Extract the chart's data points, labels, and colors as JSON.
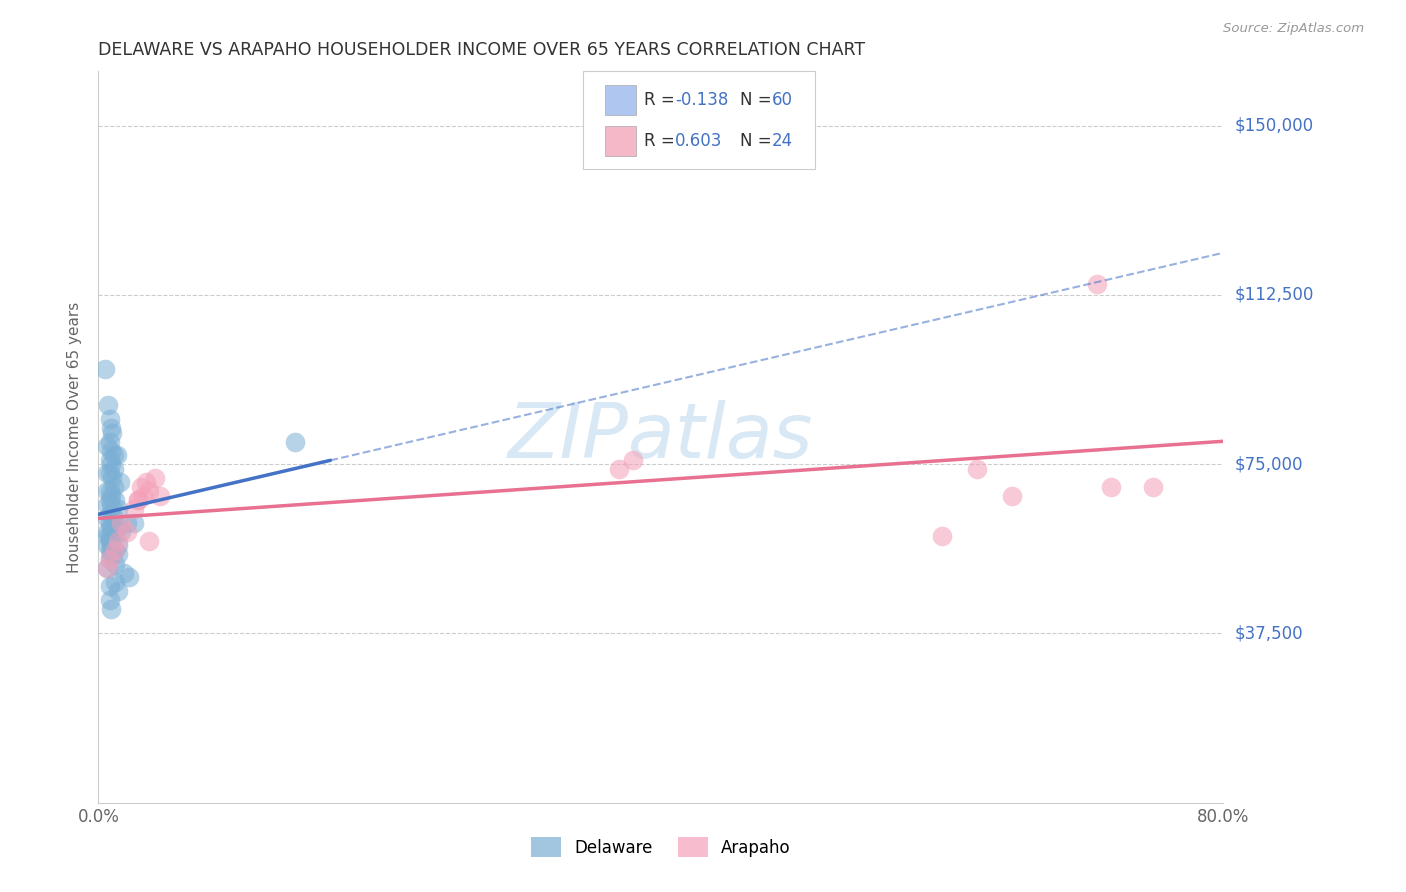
{
  "title": "DELAWARE VS ARAPAHO HOUSEHOLDER INCOME OVER 65 YEARS CORRELATION CHART",
  "source": "Source: ZipAtlas.com",
  "ylabel": "Householder Income Over 65 years",
  "ytick_values": [
    37500,
    75000,
    112500,
    150000
  ],
  "ytick_labels": [
    "$37,500",
    "$75,000",
    "$112,500",
    "$150,000"
  ],
  "xlim": [
    0.0,
    0.8
  ],
  "ylim": [
    0,
    162000
  ],
  "watermark": "ZIPatlas",
  "delaware_color": "#7bafd4",
  "arapaho_color": "#f4a0b8",
  "delaware_line_color": "#4472c4",
  "arapaho_line_color": "#e87090",
  "legend_del_color": "#aec6f0",
  "legend_ara_color": "#f4b8c8",
  "legend_labels": [
    "Delaware",
    "Arapaho"
  ],
  "del_R": "-0.138",
  "del_N": "60",
  "ara_R": "0.603",
  "ara_N": "24",
  "delaware_x": [
    0.005,
    0.007,
    0.008,
    0.009,
    0.01,
    0.008,
    0.006,
    0.009,
    0.011,
    0.013,
    0.008,
    0.009,
    0.011,
    0.006,
    0.008,
    0.01,
    0.015,
    0.011,
    0.008,
    0.006,
    0.009,
    0.012,
    0.008,
    0.006,
    0.009,
    0.014,
    0.008,
    0.01,
    0.006,
    0.011,
    0.02,
    0.025,
    0.008,
    0.014,
    0.009,
    0.016,
    0.006,
    0.012,
    0.008,
    0.009,
    0.006,
    0.008,
    0.014,
    0.009,
    0.006,
    0.012,
    0.008,
    0.014,
    0.009,
    0.008,
    0.012,
    0.006,
    0.018,
    0.022,
    0.012,
    0.14,
    0.008,
    0.014,
    0.008,
    0.009
  ],
  "delaware_y": [
    96000,
    88000,
    85000,
    83000,
    82000,
    80000,
    79000,
    78000,
    77000,
    77000,
    76000,
    75000,
    74000,
    73000,
    73000,
    72000,
    71000,
    70000,
    69000,
    69000,
    68000,
    67000,
    67000,
    66000,
    66000,
    65000,
    64000,
    64000,
    63000,
    63000,
    62000,
    62000,
    62000,
    61000,
    61000,
    60000,
    60000,
    60000,
    59000,
    59000,
    59000,
    58000,
    57000,
    57000,
    57000,
    56000,
    56000,
    55000,
    55000,
    54000,
    53000,
    52000,
    51000,
    50000,
    49000,
    80000,
    48000,
    47000,
    45000,
    43000
  ],
  "arapaho_x": [
    0.006,
    0.008,
    0.012,
    0.014,
    0.02,
    0.016,
    0.025,
    0.028,
    0.032,
    0.036,
    0.03,
    0.034,
    0.04,
    0.028,
    0.036,
    0.044,
    0.37,
    0.38,
    0.6,
    0.625,
    0.65,
    0.71,
    0.72,
    0.75
  ],
  "arapaho_y": [
    52000,
    54000,
    56000,
    58000,
    60000,
    62000,
    65000,
    67000,
    68000,
    69000,
    70000,
    71000,
    72000,
    67000,
    58000,
    68000,
    74000,
    76000,
    59000,
    74000,
    68000,
    115000,
    70000,
    70000
  ],
  "del_line_x0": 0.0,
  "del_line_x_solid_end": 0.165,
  "del_line_x1": 0.8,
  "ara_line_x0": 0.0,
  "ara_line_x1": 0.8
}
